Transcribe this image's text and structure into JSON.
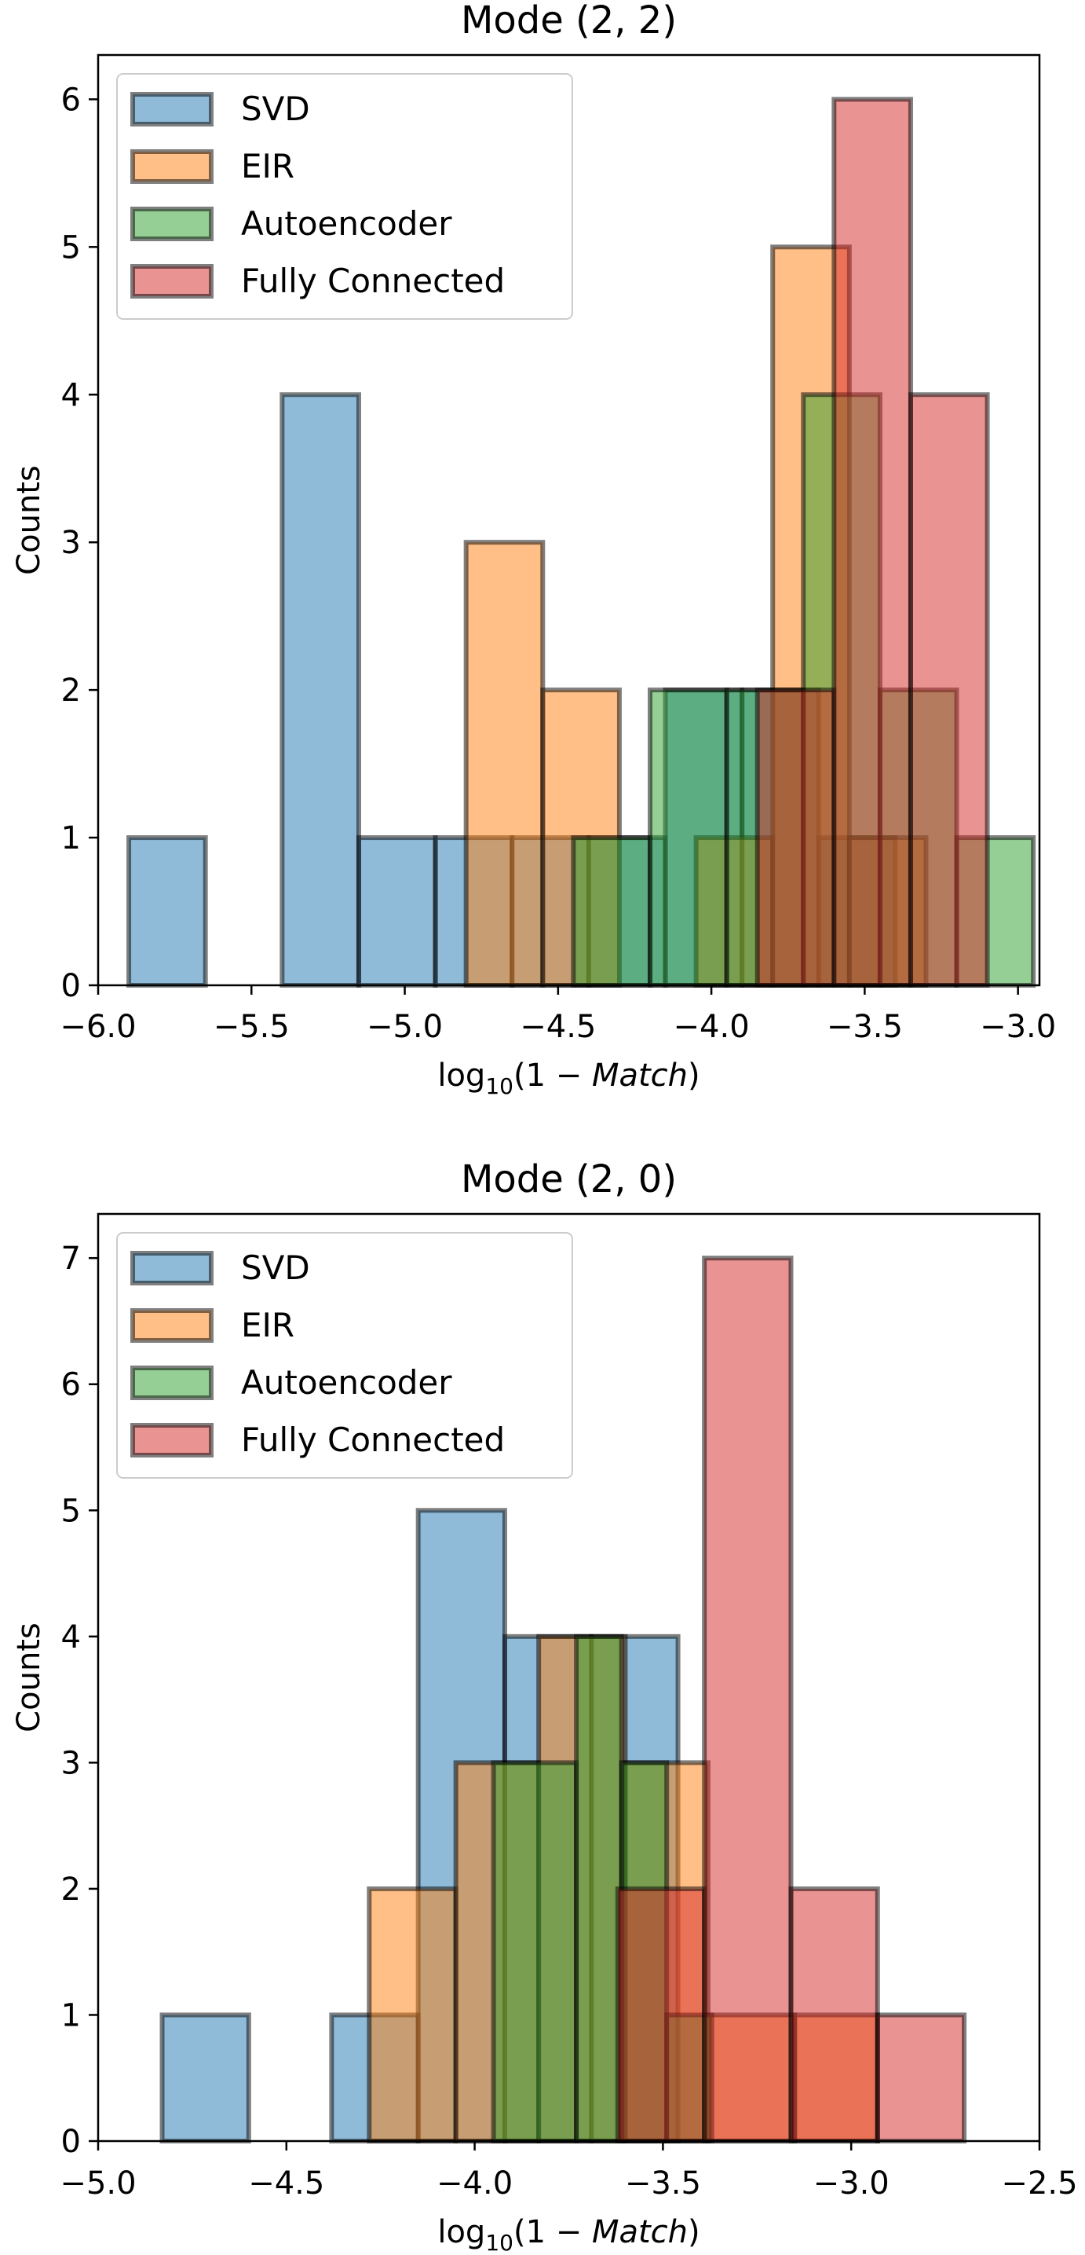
{
  "colors": {
    "SVD": "#1f77b4",
    "EIR": "#ff7f0e",
    "Autoencoder": "#2ca02c",
    "Fully Connected": "#d62728",
    "edge": "#000000"
  },
  "chart_data": [
    {
      "type": "bar",
      "title": "Mode (2, 2)",
      "xlabel": "log10(1 − Match)",
      "xlabel_parts": {
        "pre": "log",
        "sub": "10",
        "mid": "(1 − ",
        "ital": "Match",
        "post": ")"
      },
      "ylabel": "Counts",
      "xlim": [
        -6.0,
        -2.93
      ],
      "ylim": [
        0,
        6.3
      ],
      "xticks": [
        -6.0,
        -5.5,
        -5.0,
        -4.5,
        -4.0,
        -3.5,
        -3.0
      ],
      "xtick_labels": [
        "−6.0",
        "−5.5",
        "−5.0",
        "−4.5",
        "−4.0",
        "−3.5",
        "−3.0"
      ],
      "yticks": [
        0,
        1,
        2,
        3,
        4,
        5,
        6
      ],
      "ytick_labels": [
        "0",
        "1",
        "2",
        "3",
        "4",
        "5",
        "6"
      ],
      "legend": {
        "placement": "upper-left",
        "entries": [
          "SVD",
          "EIR",
          "Autoencoder",
          "Fully Connected"
        ]
      },
      "series": [
        {
          "name": "SVD",
          "bins": [
            [
              -5.9,
              -5.65,
              1
            ],
            [
              -5.65,
              -5.4,
              0
            ],
            [
              -5.4,
              -5.15,
              4
            ],
            [
              -5.15,
              -4.9,
              1
            ],
            [
              -4.9,
              -4.65,
              1
            ],
            [
              -4.65,
              -4.4,
              1
            ],
            [
              -4.4,
              -4.15,
              1
            ],
            [
              -4.15,
              -3.9,
              2
            ],
            [
              -3.9,
              -3.65,
              2
            ],
            [
              -3.65,
              -3.4,
              1
            ]
          ]
        },
        {
          "name": "EIR",
          "bins": [
            [
              -4.8,
              -4.55,
              3
            ],
            [
              -4.55,
              -4.3,
              2
            ],
            [
              -4.3,
              -4.05,
              0
            ],
            [
              -4.05,
              -3.8,
              1
            ],
            [
              -3.8,
              -3.55,
              5
            ],
            [
              -3.55,
              -3.3,
              1
            ]
          ]
        },
        {
          "name": "Autoencoder",
          "bins": [
            [
              -4.45,
              -4.2,
              1
            ],
            [
              -4.2,
              -3.95,
              2
            ],
            [
              -3.95,
              -3.7,
              2
            ],
            [
              -3.7,
              -3.45,
              4
            ],
            [
              -3.45,
              -3.2,
              2
            ],
            [
              -3.2,
              -2.95,
              1
            ]
          ]
        },
        {
          "name": "Fully Connected",
          "bins": [
            [
              -3.85,
              -3.6,
              2
            ],
            [
              -3.6,
              -3.35,
              6
            ],
            [
              -3.35,
              -3.1,
              4
            ]
          ]
        }
      ]
    },
    {
      "type": "bar",
      "title": "Mode (2, 0)",
      "xlabel": "log10(1 − Match)",
      "xlabel_parts": {
        "pre": "log",
        "sub": "10",
        "mid": "(1 − ",
        "ital": "Match",
        "post": ")"
      },
      "ylabel": "Counts",
      "xlim": [
        -5.0,
        -2.5
      ],
      "ylim": [
        0,
        7.35
      ],
      "xticks": [
        -5.0,
        -4.5,
        -4.0,
        -3.5,
        -3.0,
        -2.5
      ],
      "xtick_labels": [
        "−5.0",
        "−4.5",
        "−4.0",
        "−3.5",
        "−3.0",
        "−2.5"
      ],
      "yticks": [
        0,
        1,
        2,
        3,
        4,
        5,
        6,
        7
      ],
      "ytick_labels": [
        "0",
        "1",
        "2",
        "3",
        "4",
        "5",
        "6",
        "7"
      ],
      "legend": {
        "placement": "upper-left",
        "entries": [
          "SVD",
          "EIR",
          "Autoencoder",
          "Fully Connected"
        ]
      },
      "series": [
        {
          "name": "SVD",
          "bins": [
            [
              -4.83,
              -4.6,
              1
            ],
            [
              -4.6,
              -4.38,
              0
            ],
            [
              -4.38,
              -4.15,
              1
            ],
            [
              -4.15,
              -3.92,
              5
            ],
            [
              -3.92,
              -3.69,
              4
            ],
            [
              -3.69,
              -3.46,
              4
            ]
          ]
        },
        {
          "name": "EIR",
          "bins": [
            [
              -4.28,
              -4.05,
              2
            ],
            [
              -4.05,
              -3.83,
              3
            ],
            [
              -3.83,
              -3.6,
              4
            ],
            [
              -3.6,
              -3.38,
              3
            ],
            [
              -3.38,
              -3.15,
              1
            ],
            [
              -3.15,
              -2.93,
              1
            ]
          ]
        },
        {
          "name": "Autoencoder",
          "bins": [
            [
              -3.95,
              -3.73,
              3
            ],
            [
              -3.73,
              -3.61,
              4
            ],
            [
              -3.61,
              -3.49,
              3
            ],
            [
              -3.49,
              -3.37,
              1
            ]
          ]
        },
        {
          "name": "Fully Connected",
          "bins": [
            [
              -3.62,
              -3.39,
              2
            ],
            [
              -3.39,
              -3.16,
              7
            ],
            [
              -3.16,
              -2.93,
              2
            ],
            [
              -2.93,
              -2.7,
              1
            ]
          ]
        }
      ]
    }
  ]
}
